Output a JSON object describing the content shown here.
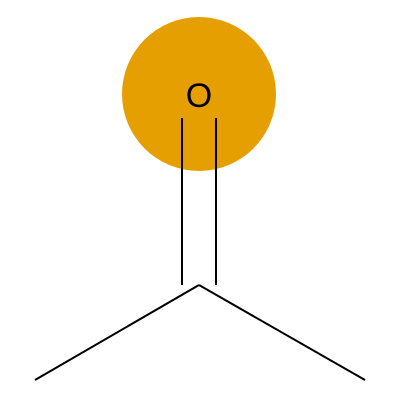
{
  "molecule": {
    "atoms": [
      {
        "element": "O",
        "label": "O",
        "highlighted": true
      },
      {
        "element": "C",
        "label": "",
        "highlighted": false
      },
      {
        "element": "C",
        "label": "",
        "highlighted": false
      },
      {
        "element": "C",
        "label": "",
        "highlighted": false
      }
    ],
    "bonds": [
      {
        "from": 0,
        "to": 1,
        "order": 2
      },
      {
        "from": 1,
        "to": 2,
        "order": 1
      },
      {
        "from": 1,
        "to": 3,
        "order": 1
      }
    ]
  },
  "colors": {
    "highlight": "#E69F00",
    "bond": "#000000",
    "background": "#FFFFFF"
  }
}
